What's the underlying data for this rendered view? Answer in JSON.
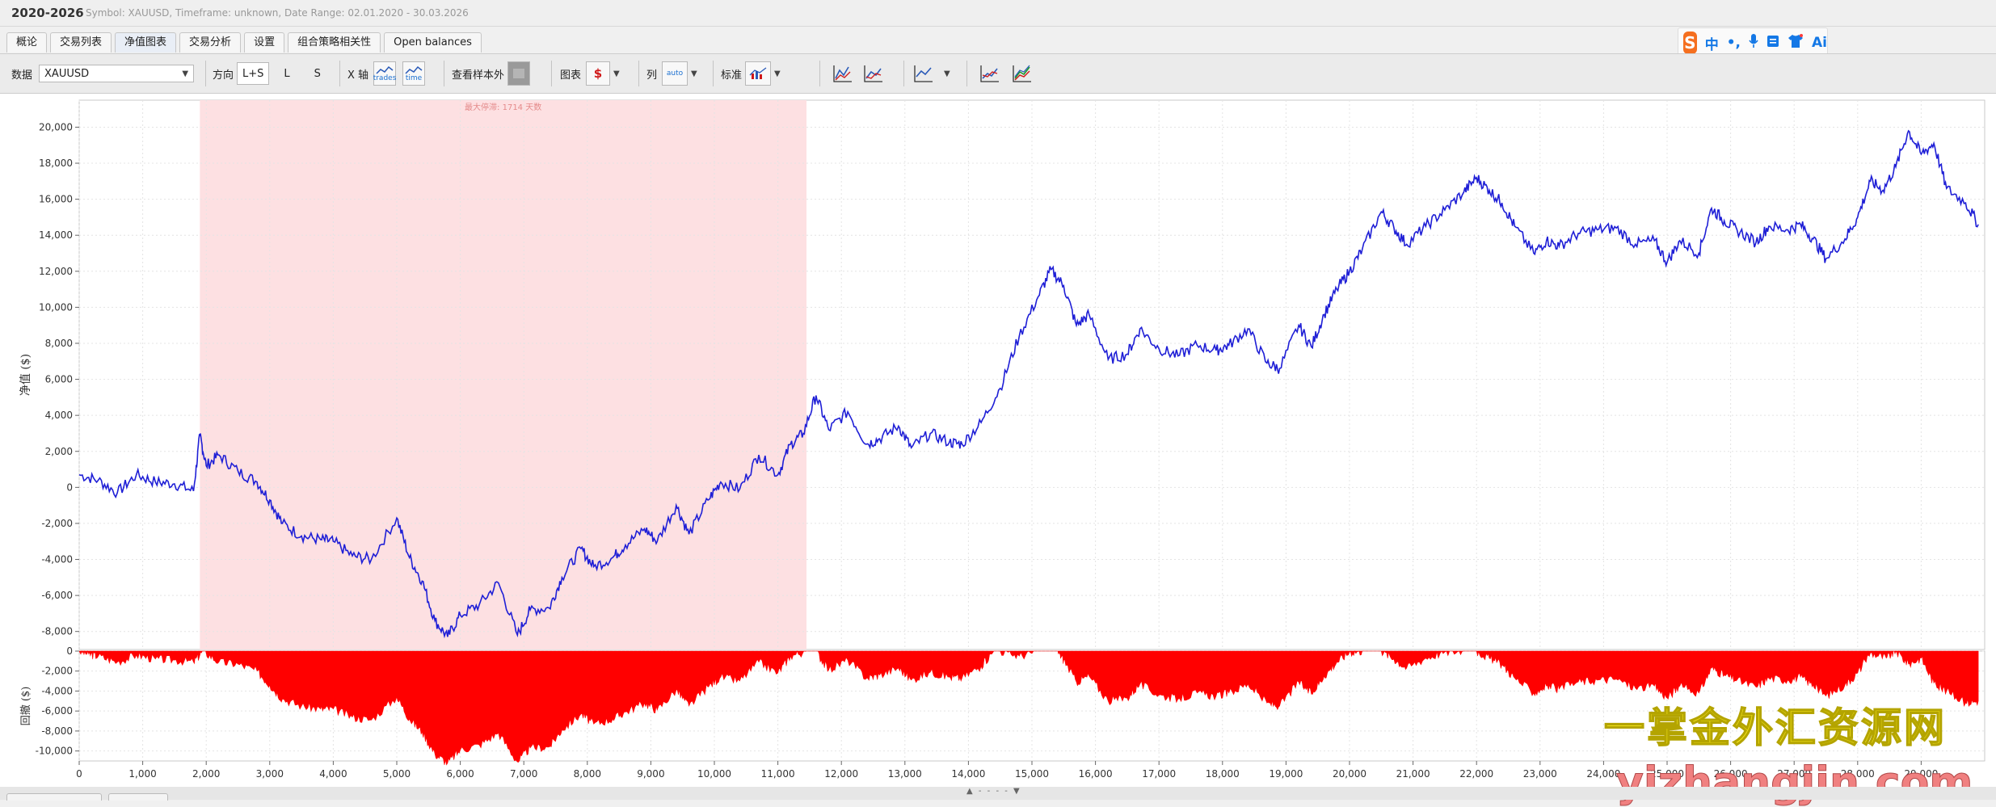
{
  "app": {
    "title": "2020-2026",
    "subtitle": "Symbol: XAUUSD, Timeframe: unknown, Date Range: 02.01.2020 - 30.03.2026"
  },
  "tabs": [
    "概论",
    "交易列表",
    "净值图表",
    "交易分析",
    "设置",
    "组合策略相关性",
    "Open balances"
  ],
  "active_tab": 2,
  "toolbar": {
    "data_label": "数据",
    "data_value": "XAUUSD",
    "direction_label": "方向",
    "direction_options": [
      "L+S",
      "L",
      "S"
    ],
    "xaxis_label": "X 轴",
    "xaxis_trades": "trades",
    "xaxis_time": "time",
    "oos_label": "查看样本外",
    "chart_label": "图表",
    "chart_icon": "$",
    "col_label": "列",
    "col_icon": "auto",
    "std_label": "标准"
  },
  "ime": {
    "items": [
      "中",
      "•,",
      "mic",
      "kbd",
      "shirt",
      "Ai"
    ]
  },
  "watermark": {
    "line1": "一掌金外汇资源网",
    "line2": "yizhangjin.com"
  },
  "chart_data": [
    {
      "type": "line",
      "ylabel": "净值 ($)",
      "xlim": [
        0,
        30000
      ],
      "ylim": [
        -9000,
        21500
      ],
      "yticks": [
        20000,
        18000,
        16000,
        14000,
        12000,
        10000,
        8000,
        6000,
        4000,
        2000,
        0,
        -2000,
        -4000,
        -6000,
        -8000
      ],
      "ytick_labels": [
        "20,000",
        "18,000",
        "16,000",
        "14,000",
        "12,000",
        "10,000",
        "8,000",
        "6,000",
        "4,000",
        "2,000",
        "0",
        "-2,000",
        "-4,000",
        "-6,000",
        "-8,000"
      ],
      "highlight_region": {
        "x0": 1900,
        "x1": 11450,
        "label": "最大停滞: 1714 天数",
        "color": "#fde0e2"
      },
      "series": [
        {
          "color": "#1f1fd6",
          "x": [
            0,
            300,
            600,
            900,
            1200,
            1500,
            1800,
            1900,
            2000,
            2200,
            2500,
            2800,
            3000,
            3200,
            3500,
            3800,
            4000,
            4300,
            4600,
            5000,
            5200,
            5400,
            5600,
            5800,
            6000,
            6300,
            6600,
            6900,
            7100,
            7400,
            7600,
            7900,
            8100,
            8400,
            8600,
            8900,
            9100,
            9400,
            9600,
            9900,
            10100,
            10400,
            10700,
            11000,
            11200,
            11400,
            11600,
            11800,
            12100,
            12400,
            12600,
            12900,
            13100,
            13400,
            13700,
            13900,
            14200,
            14500,
            14800,
            15100,
            15300,
            15500,
            15700,
            15900,
            16200,
            16500,
            16700,
            17000,
            17300,
            17600,
            17900,
            18100,
            18400,
            18700,
            18900,
            19200,
            19400,
            19600,
            19800,
            20000,
            20200,
            20500,
            20700,
            20900,
            21200,
            21500,
            21800,
            22000,
            22200,
            22400,
            22600,
            22900,
            23100,
            23300,
            23600,
            23900,
            24200,
            24500,
            24800,
            25000,
            25200,
            25500,
            25700,
            25900,
            26100,
            26400,
            26600,
            26900,
            27100,
            27300,
            27500,
            27800,
            28000,
            28200,
            28400,
            28600,
            28800,
            29000,
            29200,
            29400,
            29700,
            29900
          ],
          "y": [
            700,
            400,
            -300,
            700,
            300,
            200,
            -200,
            2900,
            1200,
            1800,
            900,
            300,
            -700,
            -2000,
            -2700,
            -2900,
            -3000,
            -3800,
            -4000,
            -1700,
            -3900,
            -5200,
            -7400,
            -8300,
            -7100,
            -6500,
            -5300,
            -8200,
            -6800,
            -6700,
            -5000,
            -3400,
            -4400,
            -3900,
            -3200,
            -2300,
            -3000,
            -1000,
            -2600,
            -700,
            300,
            -100,
            1800,
            700,
            2400,
            3000,
            5100,
            3200,
            4200,
            2400,
            2700,
            3400,
            2200,
            3000,
            2500,
            2400,
            3600,
            5500,
            8400,
            10600,
            12100,
            11200,
            9000,
            9600,
            7100,
            7400,
            8800,
            7700,
            7300,
            7900,
            7600,
            7900,
            8800,
            6900,
            6600,
            9000,
            7800,
            9600,
            11000,
            12000,
            13200,
            15300,
            14400,
            13500,
            14500,
            15400,
            16400,
            17200,
            16500,
            15800,
            14500,
            13000,
            13700,
            13400,
            14100,
            14300,
            14400,
            13500,
            13700,
            12500,
            13700,
            13000,
            15500,
            14800,
            14300,
            13600,
            14500,
            14300,
            14600,
            13800,
            12700,
            13800,
            15000,
            17000,
            16500,
            17800,
            19800,
            18500,
            19100,
            16600,
            15800,
            14600
          ]
        }
      ]
    },
    {
      "type": "area",
      "ylabel": "回撤 ($)",
      "ylim": [
        -11000,
        0
      ],
      "yticks": [
        0,
        -2000,
        -4000,
        -6000,
        -8000,
        -10000
      ],
      "ytick_labels": [
        "0",
        "-2,000",
        "-4,000",
        "-6,000",
        "-8,000",
        "-10,000"
      ],
      "xticks": [
        0,
        1000,
        2000,
        3000,
        4000,
        5000,
        6000,
        7000,
        8000,
        9000,
        10000,
        11000,
        12000,
        13000,
        14000,
        15000,
        16000,
        17000,
        18000,
        19000,
        20000,
        21000,
        22000,
        23000,
        24000,
        25000,
        26000,
        27000,
        28000,
        29000
      ],
      "xtick_labels": [
        "0",
        "1,000",
        "2,000",
        "3,000",
        "4,000",
        "5,000",
        "6,000",
        "7,000",
        "8,000",
        "9,000",
        "10,000",
        "11,000",
        "12,000",
        "13,000",
        "14,000",
        "15,000",
        "16,000",
        "17,000",
        "18,000",
        "19,000",
        "20,000",
        "21,000",
        "22,000",
        "23,000",
        "24,000",
        "25,000",
        "26,000",
        "27,000",
        "28,000",
        "29,000"
      ],
      "series": [
        {
          "color": "#ff0000",
          "x": [
            0,
            150,
            300,
            600,
            900,
            1200,
            1500,
            1800,
            1950,
            2200,
            2500,
            2800,
            3000,
            3200,
            3500,
            3800,
            4000,
            4300,
            4600,
            5000,
            5200,
            5400,
            5600,
            5800,
            6000,
            6300,
            6600,
            6900,
            7100,
            7400,
            7600,
            7900,
            8100,
            8400,
            8600,
            8900,
            9100,
            9400,
            9600,
            9900,
            10100,
            10400,
            10700,
            11000,
            11200,
            11450,
            11600,
            11800,
            12100,
            12400,
            12600,
            12900,
            13100,
            13400,
            13700,
            13900,
            14200,
            14400,
            14500,
            14800,
            15100,
            15300,
            15400,
            15500,
            15700,
            15900,
            16200,
            16500,
            16700,
            17000,
            17300,
            17600,
            17900,
            18100,
            18400,
            18700,
            18900,
            19200,
            19400,
            19600,
            19800,
            20000,
            20200,
            20500,
            20700,
            20900,
            21200,
            21500,
            21800,
            22000,
            22200,
            22400,
            22600,
            22900,
            23100,
            23300,
            23600,
            23900,
            24200,
            24500,
            24800,
            25000,
            25200,
            25500,
            25700,
            25900,
            26100,
            26400,
            26600,
            26900,
            27100,
            27300,
            27500,
            27800,
            28000,
            28200,
            28450,
            28600,
            28800,
            29000,
            29200,
            29400,
            29700,
            29900
          ],
          "y": [
            0,
            -300,
            -500,
            -1100,
            -400,
            -800,
            -900,
            -1100,
            0,
            -1100,
            -1300,
            -2000,
            -3400,
            -4800,
            -5500,
            -5800,
            -5800,
            -6600,
            -6900,
            -4600,
            -6800,
            -8100,
            -10300,
            -11200,
            -9900,
            -9400,
            -8200,
            -11100,
            -9700,
            -9600,
            -7900,
            -6300,
            -7300,
            -6800,
            -6100,
            -5200,
            -5900,
            -3900,
            -5500,
            -3600,
            -2600,
            -3000,
            -1100,
            -2200,
            -500,
            0,
            0,
            -1900,
            -900,
            -2700,
            -2400,
            -1700,
            -2900,
            -2100,
            -2600,
            -2700,
            -1500,
            0,
            0,
            -500,
            0,
            0,
            0,
            -900,
            -3100,
            -2500,
            -5000,
            -4700,
            -3300,
            -4400,
            -4800,
            -4200,
            -4500,
            -4200,
            -3300,
            -5200,
            -5500,
            -3100,
            -4300,
            -2500,
            -1100,
            -100,
            0,
            0,
            -800,
            -1700,
            -700,
            -100,
            0,
            0,
            -700,
            -1400,
            -2700,
            -4200,
            -3500,
            -3800,
            -3100,
            -2900,
            -2800,
            -3700,
            -3500,
            -4700,
            -3500,
            -4200,
            -1700,
            -2400,
            -2900,
            -3600,
            -2700,
            -2900,
            -2600,
            -3400,
            -4500,
            -3400,
            -2200,
            -200,
            -700,
            0,
            -1300,
            -700,
            -3200,
            -4000,
            -5200,
            -5000
          ]
        }
      ]
    }
  ]
}
